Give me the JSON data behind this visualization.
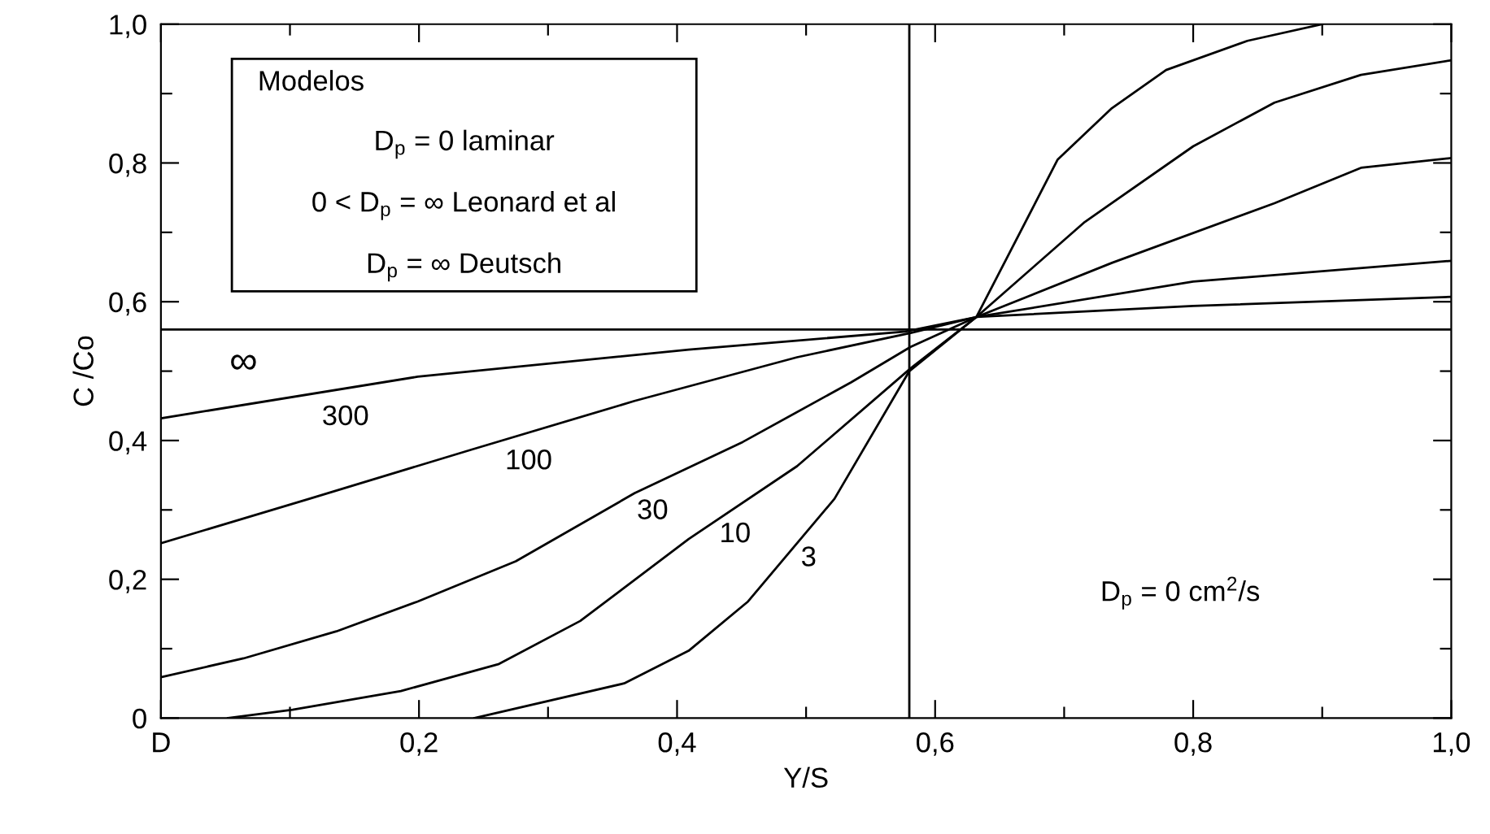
{
  "chart_data": {
    "type": "line",
    "xlabel": "Y/S",
    "ylabel": "C /Co",
    "xlim": [
      0,
      1.0
    ],
    "ylim": [
      0,
      1.0
    ],
    "xticks": [
      {
        "value": 0,
        "label": "D"
      },
      {
        "value": 0.1,
        "label": null
      },
      {
        "value": 0.2,
        "label": "0,2"
      },
      {
        "value": 0.3,
        "label": null
      },
      {
        "value": 0.4,
        "label": "0,4"
      },
      {
        "value": 0.5,
        "label": null
      },
      {
        "value": 0.6,
        "label": "0,6"
      },
      {
        "value": 0.7,
        "label": null
      },
      {
        "value": 0.8,
        "label": "0,8"
      },
      {
        "value": 0.9,
        "label": null
      },
      {
        "value": 1.0,
        "label": "1,0"
      }
    ],
    "yticks": [
      {
        "value": 0,
        "label": "0"
      },
      {
        "value": 0.1,
        "label": null
      },
      {
        "value": 0.2,
        "label": "0,2"
      },
      {
        "value": 0.3,
        "label": null
      },
      {
        "value": 0.4,
        "label": "0,4"
      },
      {
        "value": 0.5,
        "label": null
      },
      {
        "value": 0.6,
        "label": "0,6"
      },
      {
        "value": 0.7,
        "label": null
      },
      {
        "value": 0.8,
        "label": "0,8"
      },
      {
        "value": 0.9,
        "label": null
      },
      {
        "value": 1.0,
        "label": "1,0"
      }
    ],
    "grid": false,
    "marker": "none",
    "line_style": "solid",
    "series": [
      {
        "name": "∞",
        "color": "#000000",
        "x": [
          0,
          1.0
        ],
        "values": [
          0.56,
          0.56
        ]
      },
      {
        "name": "300",
        "color": "#000000",
        "x": [
          0,
          0.199,
          0.409,
          0.577,
          0.632,
          0.8,
          1.0
        ],
        "values": [
          0.432,
          0.492,
          0.531,
          0.557,
          0.578,
          0.594,
          0.607
        ]
      },
      {
        "name": "100",
        "color": "#000000",
        "x": [
          0,
          0.115,
          0.241,
          0.367,
          0.493,
          0.581,
          0.632,
          0.8,
          1.0
        ],
        "values": [
          0.252,
          0.316,
          0.387,
          0.457,
          0.52,
          0.555,
          0.578,
          0.629,
          0.659
        ]
      },
      {
        "name": "30",
        "color": "#000000",
        "x": [
          0,
          0.064,
          0.136,
          0.199,
          0.275,
          0.367,
          0.451,
          0.535,
          0.581,
          0.632,
          0.737,
          0.863,
          0.93,
          1.0
        ],
        "values": [
          0.059,
          0.086,
          0.125,
          0.168,
          0.226,
          0.324,
          0.398,
          0.484,
          0.535,
          0.578,
          0.656,
          0.742,
          0.793,
          0.807
        ]
      },
      {
        "name": "10",
        "color": "#000000",
        "x": [
          0.052,
          0.102,
          0.186,
          0.262,
          0.325,
          0.409,
          0.493,
          0.581,
          0.632,
          0.716,
          0.8,
          0.863,
          0.93,
          1.0
        ],
        "values": [
          0,
          0.012,
          0.039,
          0.078,
          0.14,
          0.258,
          0.363,
          0.504,
          0.578,
          0.715,
          0.824,
          0.887,
          0.927,
          0.948
        ]
      },
      {
        "name": "3",
        "color": "#000000",
        "x": [
          0.243,
          0.359,
          0.409,
          0.455,
          0.522,
          0.58,
          0.632,
          0.695,
          0.737,
          0.779,
          0.842,
          0.9
        ],
        "values": [
          0,
          0.05,
          0.097,
          0.168,
          0.316,
          0.5,
          0.578,
          0.805,
          0.879,
          0.934,
          0.976,
          1.0
        ]
      }
    ],
    "ref_lines": [
      {
        "axis": "x",
        "value": 0.58,
        "color": "#000000"
      }
    ],
    "annotations": [
      "Modelos",
      "D$_{p}$ = 0 laminar",
      "0 < D$_{p}$ = ∞ Leonard et al",
      "D$_{p}$ = ∞ Deutsch",
      "D$_{p}$ = 0 cm$^{2}$/s"
    ]
  }
}
